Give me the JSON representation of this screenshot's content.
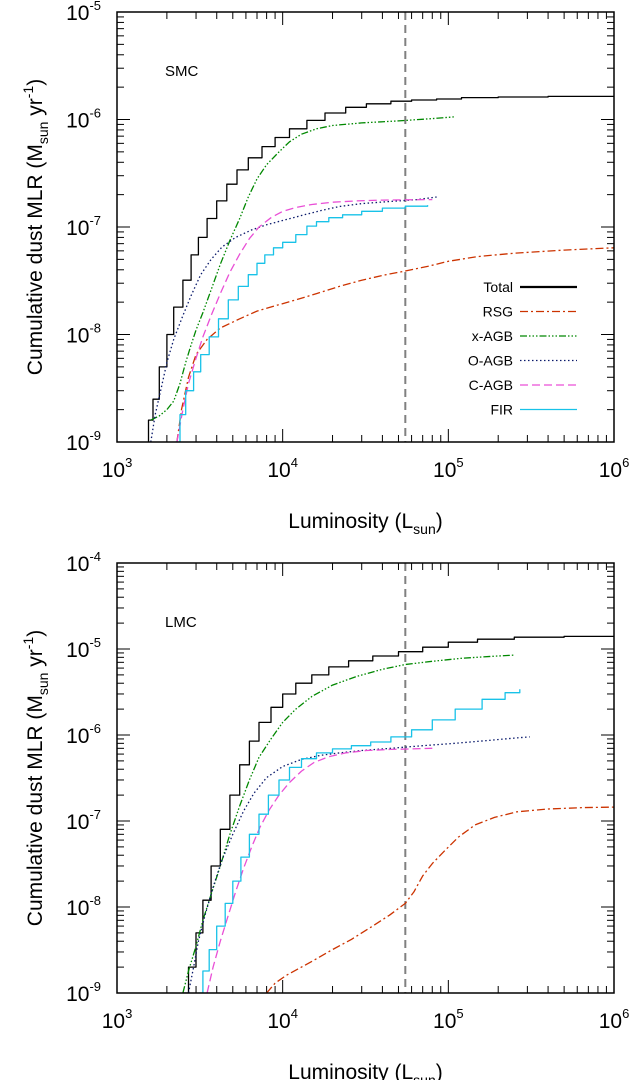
{
  "chart_data": [
    {
      "type": "line",
      "panel_label": "SMC",
      "xlabel": "Luminosity (L_sun)",
      "ylabel": "Cumulative dust MLR (M_sun yr^-1)",
      "xscale": "log",
      "yscale": "log",
      "xlim": [
        1000,
        1000000
      ],
      "ylim": [
        1e-09,
        1e-05
      ],
      "x_tick_labels": [
        "10^3",
        "10^4",
        "10^5",
        "10^6"
      ],
      "y_tick_labels": [
        "10^-9",
        "10^-8",
        "10^-7",
        "10^-6",
        "10^-5"
      ],
      "reference_line": {
        "x": 55000,
        "style": "dashed",
        "color": "#808080"
      },
      "legend_position": "center-right",
      "series": [
        {
          "name": "Total",
          "color": "#000000",
          "dash": "solid",
          "width": 1.3,
          "step": true,
          "x": [
            1500,
            1550,
            1650,
            1800,
            2000,
            2200,
            2500,
            2800,
            3100,
            3500,
            4000,
            4600,
            5300,
            6200,
            7500,
            9000,
            11000,
            14000,
            18000,
            24000,
            32000,
            45000,
            60000,
            85000,
            120000,
            200000,
            400000,
            1000000
          ],
          "y": [
            9.5e-10,
            1.6e-09,
            2.5e-09,
            5e-09,
            1e-08,
            1.8e-08,
            3.2e-08,
            5.5e-08,
            8e-08,
            1.2e-07,
            1.75e-07,
            2.5e-07,
            3.4e-07,
            4.4e-07,
            5.6e-07,
            6.8e-07,
            8.2e-07,
            9.8e-07,
            1.15e-06,
            1.3e-06,
            1.4e-06,
            1.48e-06,
            1.52e-06,
            1.55e-06,
            1.6e-06,
            1.62e-06,
            1.64e-06,
            1.65e-06
          ]
        },
        {
          "name": "RSG",
          "color": "#cc3300",
          "dash": "8 3 2 3",
          "width": 1.3,
          "step": false,
          "x": [
            2300,
            2450,
            2700,
            3000,
            3500,
            4200,
            5500,
            7000,
            9000,
            12000,
            16000,
            22000,
            30000,
            42000,
            55000,
            75000,
            100000,
            150000,
            250000,
            500000,
            1000000
          ],
          "y": [
            1e-09,
            2e-09,
            4e-09,
            6.5e-09,
            9e-09,
            1.15e-08,
            1.4e-08,
            1.65e-08,
            1.85e-08,
            2.1e-08,
            2.4e-08,
            2.8e-08,
            3.2e-08,
            3.6e-08,
            3.9e-08,
            4.3e-08,
            4.8e-08,
            5.3e-08,
            5.7e-08,
            6.1e-08,
            6.4e-08
          ]
        },
        {
          "name": "x-AGB",
          "color": "#008800",
          "dash": "7 2 1.5 2 1.5 2 1.5 2",
          "width": 1.3,
          "step": false,
          "x": [
            1600,
            1800,
            2000,
            2200,
            2400,
            2600,
            2800,
            3000,
            3300,
            3700,
            4200,
            4800,
            5500,
            6200,
            7000,
            8000,
            9500,
            11000,
            13000,
            16000,
            20000,
            30000,
            50000,
            80000,
            110000
          ],
          "y": [
            1.6e-09,
            1.75e-09,
            2e-09,
            2.4e-09,
            3.5e-09,
            5.5e-09,
            8e-09,
            1.1e-08,
            1.6e-08,
            2.6e-08,
            4.5e-08,
            7.5e-08,
            1.2e-07,
            1.9e-07,
            2.8e-07,
            3.8e-07,
            5e-07,
            6.2e-07,
            7.3e-07,
            8.2e-07,
            8.8e-07,
            9.3e-07,
            9.7e-07,
            1.02e-06,
            1.06e-06
          ]
        },
        {
          "name": "O-AGB",
          "color": "#0a1a6b",
          "dash": "1.5 2.5",
          "width": 1.3,
          "step": false,
          "x": [
            1600,
            1700,
            1850,
            2000,
            2200,
            2500,
            2800,
            3200,
            3700,
            4300,
            5200,
            6500,
            8000,
            10000,
            13000,
            17000,
            22000,
            30000,
            45000,
            65000,
            85000
          ],
          "y": [
            1e-09,
            1.8e-09,
            3.2e-09,
            5.5e-09,
            9e-09,
            1.5e-08,
            2.3e-08,
            3.6e-08,
            5e-08,
            6.5e-08,
            8e-08,
            9.4e-08,
            1.05e-07,
            1.15e-07,
            1.28e-07,
            1.42e-07,
            1.55e-07,
            1.65e-07,
            1.73e-07,
            1.8e-07,
            1.9e-07
          ]
        },
        {
          "name": "C-AGB",
          "color": "#e94fd6",
          "dash": "8 4",
          "width": 1.3,
          "step": false,
          "x": [
            2300,
            2500,
            2700,
            3000,
            3300,
            3700,
            4200,
            4800,
            5500,
            6300,
            7200,
            8500,
            10000,
            12000,
            15000,
            20000,
            28000,
            40000,
            55000,
            80000
          ],
          "y": [
            1e-09,
            2e-09,
            3.5e-09,
            6e-09,
            9.5e-09,
            1.5e-08,
            2.4e-08,
            3.8e-08,
            5.6e-08,
            7.8e-08,
            1e-07,
            1.22e-07,
            1.4e-07,
            1.52e-07,
            1.62e-07,
            1.7e-07,
            1.75e-07,
            1.78e-07,
            1.79e-07,
            1.8e-07
          ]
        },
        {
          "name": "FIR",
          "color": "#18c2e8",
          "dash": "solid",
          "width": 1.3,
          "step": true,
          "x": [
            2250,
            2400,
            2600,
            2900,
            3200,
            3600,
            4100,
            4700,
            5400,
            6200,
            7000,
            7800,
            8800,
            10000,
            12000,
            14000,
            16000,
            19000,
            23000,
            30000,
            40000,
            55000,
            75000
          ],
          "y": [
            1e-09,
            1.8e-09,
            3e-09,
            4.5e-09,
            6.5e-09,
            9.5e-09,
            1.4e-08,
            2.1e-08,
            2.8e-08,
            3.6e-08,
            4.6e-08,
            5.5e-08,
            6.4e-08,
            7.2e-08,
            8.5e-08,
            1.02e-07,
            1.12e-07,
            1.22e-07,
            1.3e-07,
            1.4e-07,
            1.5e-07,
            1.56e-07,
            1.6e-07
          ]
        }
      ]
    },
    {
      "type": "line",
      "panel_label": "LMC",
      "xlabel": "Luminosity (L_sun)",
      "ylabel": "Cumulative dust MLR (M_sun yr^-1)",
      "xscale": "log",
      "yscale": "log",
      "xlim": [
        1000,
        1000000
      ],
      "ylim": [
        1e-09,
        0.0001
      ],
      "x_tick_labels": [
        "10^3",
        "10^4",
        "10^5",
        "10^6"
      ],
      "y_tick_labels": [
        "10^-9",
        "10^-8",
        "10^-7",
        "10^-6",
        "10^-5",
        "10^-4"
      ],
      "reference_line": {
        "x": 55000,
        "style": "dashed",
        "color": "#808080"
      },
      "legend_position": "none",
      "series": [
        {
          "name": "Total",
          "color": "#000000",
          "dash": "solid",
          "width": 1.3,
          "step": true,
          "x": [
            2500,
            2700,
            3000,
            3300,
            3700,
            4200,
            4800,
            5500,
            6300,
            7200,
            8500,
            10000,
            12000,
            15000,
            19000,
            25000,
            35000,
            50000,
            70000,
            100000,
            150000,
            250000,
            500000,
            1000000
          ],
          "y": [
            1e-09,
            2e-09,
            5e-09,
            1.2e-08,
            3e-08,
            8e-08,
            2e-07,
            4.5e-07,
            8.5e-07,
            1.4e-06,
            2.1e-06,
            3e-06,
            4e-06,
            5e-06,
            6.2e-06,
            7.3e-06,
            8.3e-06,
            9.3e-06,
            1.05e-05,
            1.2e-05,
            1.3e-05,
            1.37e-05,
            1.4e-05,
            1.42e-05
          ]
        },
        {
          "name": "RSG",
          "color": "#cc3300",
          "dash": "8 3 2 3",
          "width": 1.3,
          "step": false,
          "x": [
            8000,
            9000,
            10500,
            13000,
            16000,
            20000,
            26000,
            34000,
            44000,
            55000,
            62000,
            70000,
            80000,
            95000,
            115000,
            145000,
            190000,
            260000,
            400000,
            650000,
            1000000
          ],
          "y": [
            1e-09,
            1.3e-09,
            1.6e-09,
            2e-09,
            2.5e-09,
            3.2e-09,
            4.2e-09,
            5.8e-09,
            8e-09,
            1.1e-08,
            1.5e-08,
            2.3e-08,
            3.2e-08,
            4.5e-08,
            6.5e-08,
            9e-08,
            1.1e-07,
            1.28e-07,
            1.38e-07,
            1.43e-07,
            1.45e-07
          ]
        },
        {
          "name": "x-AGB",
          "color": "#008800",
          "dash": "7 2 1.5 2 1.5 2 1.5 2",
          "width": 1.3,
          "step": false,
          "x": [
            2500,
            2700,
            3000,
            3300,
            3700,
            4200,
            4800,
            5500,
            6300,
            7200,
            8500,
            10000,
            12000,
            15000,
            20000,
            28000,
            40000,
            55000,
            80000,
            120000,
            180000,
            250000
          ],
          "y": [
            1e-09,
            1.8e-09,
            3.5e-09,
            7e-09,
            1.4e-08,
            3e-08,
            7e-08,
            1.5e-07,
            3e-07,
            5.5e-07,
            9e-07,
            1.4e-06,
            2e-06,
            2.8e-06,
            3.8e-06,
            4.8e-06,
            5.8e-06,
            6.6e-06,
            7.2e-06,
            7.8e-06,
            8.2e-06,
            8.5e-06
          ]
        },
        {
          "name": "O-AGB",
          "color": "#0a1a6b",
          "dash": "1.5 2.5",
          "width": 1.3,
          "step": false,
          "x": [
            2700,
            2900,
            3100,
            3400,
            3800,
            4300,
            5000,
            5800,
            6700,
            8000,
            10000,
            13000,
            17000,
            22000,
            30000,
            45000,
            70000,
            110000,
            170000,
            250000,
            310000
          ],
          "y": [
            1e-09,
            2e-09,
            4e-09,
            8e-09,
            1.7e-08,
            3.5e-08,
            7e-08,
            1.3e-07,
            2.1e-07,
            3.2e-07,
            4.3e-07,
            5.2e-07,
            5.8e-07,
            6.2e-07,
            6.6e-07,
            7e-07,
            7.5e-07,
            8e-07,
            8.6e-07,
            9.2e-07,
            9.5e-07
          ]
        },
        {
          "name": "C-AGB",
          "color": "#e94fd6",
          "dash": "8 4",
          "width": 1.3,
          "step": false,
          "x": [
            3500,
            3800,
            4200,
            4700,
            5200,
            5800,
            6500,
            7300,
            8300,
            9500,
            11000,
            13000,
            15500,
            19000,
            24000,
            32000,
            45000,
            60000,
            80000
          ],
          "y": [
            1e-09,
            2e-09,
            4e-09,
            8e-09,
            1.5e-08,
            2.8e-08,
            5e-08,
            8.5e-08,
            1.35e-07,
            2e-07,
            2.8e-07,
            3.8e-07,
            4.8e-07,
            5.6e-07,
            6.2e-07,
            6.6e-07,
            6.8e-07,
            6.9e-07,
            7e-07
          ]
        },
        {
          "name": "FIR",
          "color": "#18c2e8",
          "dash": "solid",
          "width": 1.3,
          "step": true,
          "x": [
            3100,
            3300,
            3600,
            4000,
            4500,
            5000,
            5600,
            6300,
            7200,
            8200,
            9500,
            11000,
            13000,
            16000,
            20000,
            26000,
            34000,
            45000,
            60000,
            80000,
            110000,
            160000,
            220000,
            270000
          ],
          "y": [
            1e-09,
            1.8e-09,
            3.2e-09,
            6e-09,
            1.1e-08,
            2e-08,
            3.8e-08,
            7e-08,
            1.2e-07,
            2e-07,
            3e-07,
            4.2e-07,
            5.3e-07,
            6.2e-07,
            6.9e-07,
            7.5e-07,
            8.3e-07,
            9.5e-07,
            1.15e-06,
            1.5e-06,
            2e-06,
            2.6e-06,
            3.1e-06,
            3.4e-06
          ]
        }
      ]
    }
  ]
}
